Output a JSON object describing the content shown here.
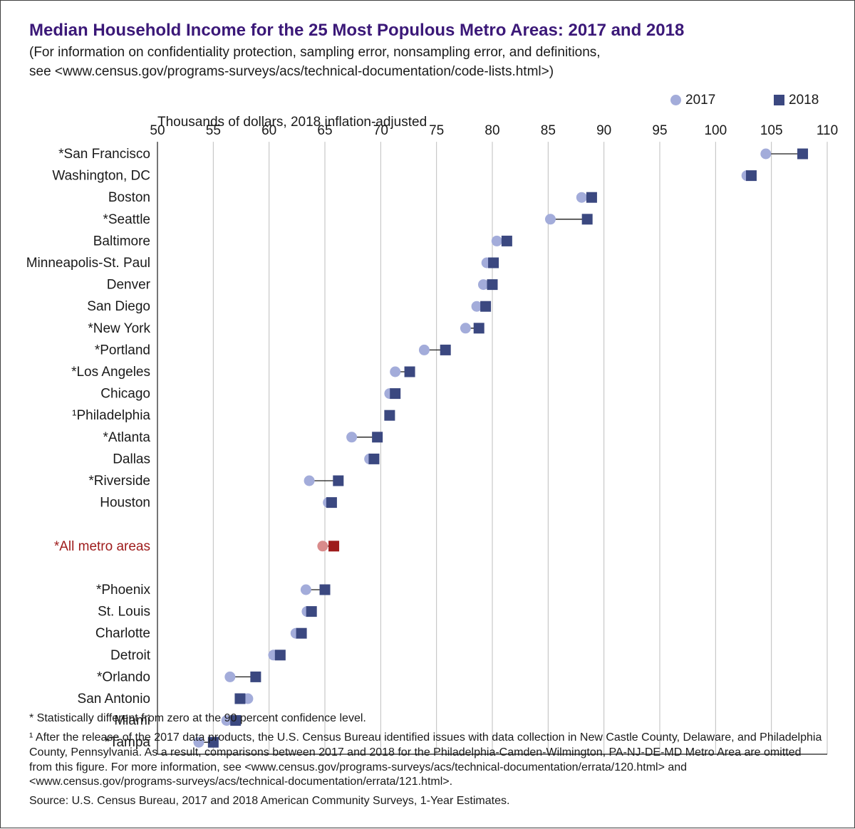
{
  "title": "Median Household Income for the 25 Most Populous Metro Areas: 2017 and 2018",
  "subtitle": "(For information on confidentiality protection, sampling error, nonsampling error, and definitions,\nsee <www.census.gov/programs-surveys/acs/technical-documentation/code-lists.html>)",
  "legend": {
    "y2017": "2017",
    "y2018": "2018"
  },
  "axis_title": "Thousands of dollars, 2018 inflation-adjusted",
  "chart": {
    "type": "dot-plot",
    "xlim": [
      50,
      110
    ],
    "xtick_step": 5,
    "xticks": [
      50,
      55,
      60,
      65,
      70,
      75,
      80,
      85,
      90,
      95,
      100,
      105,
      110
    ],
    "background_color": "#ffffff",
    "grid_color": "#bdbdbd",
    "axis_color": "#1a1a1a",
    "label_fontsize": 19,
    "tick_fontsize": 19,
    "connector_color": "#1a1a1a",
    "connector_width": 1.3,
    "marker_2017": {
      "shape": "circle",
      "size": 15,
      "color": "#a3acda"
    },
    "marker_2018": {
      "shape": "square",
      "size": 15,
      "color": "#3b4880"
    },
    "highlight_2017_color": "#d98b8b",
    "highlight_2018_color": "#9e1b1b",
    "highlight_label_color": "#9e1b1b",
    "row_height": 30.6,
    "gap_rows_before_highlight": 1,
    "gap_rows_after_highlight": 1,
    "rows": [
      {
        "label": "*San Francisco",
        "v2017": 104.5,
        "v2018": 107.8
      },
      {
        "label": "Washington, DC",
        "v2017": 102.8,
        "v2018": 103.2
      },
      {
        "label": "Boston",
        "v2017": 88.0,
        "v2018": 88.9
      },
      {
        "label": "*Seattle",
        "v2017": 85.2,
        "v2018": 88.5
      },
      {
        "label": "Baltimore",
        "v2017": 80.4,
        "v2018": 81.3
      },
      {
        "label": "Minneapolis-St. Paul",
        "v2017": 79.5,
        "v2018": 80.1
      },
      {
        "label": "Denver",
        "v2017": 79.2,
        "v2018": 80.0
      },
      {
        "label": "San Diego",
        "v2017": 78.6,
        "v2018": 79.4
      },
      {
        "label": "*New York",
        "v2017": 77.6,
        "v2018": 78.8
      },
      {
        "label": "*Portland",
        "v2017": 73.9,
        "v2018": 75.8
      },
      {
        "label": "*Los Angeles",
        "v2017": 71.3,
        "v2018": 72.6
      },
      {
        "label": "Chicago",
        "v2017": 70.8,
        "v2018": 71.3
      },
      {
        "label": "¹Philadelphia",
        "v2017": null,
        "v2018": 70.8
      },
      {
        "label": "*Atlanta",
        "v2017": 67.4,
        "v2018": 69.7
      },
      {
        "label": "Dallas",
        "v2017": 69.0,
        "v2018": 69.4
      },
      {
        "label": "*Riverside",
        "v2017": 63.6,
        "v2018": 66.2
      },
      {
        "label": "Houston",
        "v2017": 65.3,
        "v2018": 65.6
      },
      {
        "label": "*All metro areas",
        "v2017": 64.8,
        "v2018": 65.8,
        "highlight": true
      },
      {
        "label": "*Phoenix",
        "v2017": 63.3,
        "v2018": 65.0
      },
      {
        "label": "St. Louis",
        "v2017": 63.4,
        "v2018": 63.8
      },
      {
        "label": "Charlotte",
        "v2017": 62.4,
        "v2018": 62.9
      },
      {
        "label": "Detroit",
        "v2017": 60.4,
        "v2018": 61.0
      },
      {
        "label": "*Orlando",
        "v2017": 56.5,
        "v2018": 58.8
      },
      {
        "label": "San Antonio",
        "v2017": 58.1,
        "v2018": 57.4
      },
      {
        "label": "Miami",
        "v2017": 56.2,
        "v2018": 57.0
      },
      {
        "label": "*Tampa",
        "v2017": 53.7,
        "v2018": 55.0
      }
    ]
  },
  "footnotes": {
    "star": "* Statistically different from zero at the 90 percent confidence level.",
    "one": "¹ After the release of the 2017 data products, the U.S. Census Bureau identified issues with data collection in New Castle County, Delaware, and Philadelphia County, Pennsylvania. As a result, comparisons between 2017 and 2018 for the Philadelphia-Camden-Wilmington, PA-NJ-DE-MD Metro Area are omitted from this figure. For more information, see <www.census.gov/programs-surveys/acs/technical-documentation/errata/120.html> and <www.census.gov/programs-surveys/acs/technical-documentation/errata/121.html>.",
    "source": "Source: U.S. Census Bureau, 2017 and 2018 American Community Surveys, 1-Year Estimates."
  },
  "colors": {
    "title": "#3b1878",
    "text": "#1a1a1a",
    "border": "#404040"
  }
}
